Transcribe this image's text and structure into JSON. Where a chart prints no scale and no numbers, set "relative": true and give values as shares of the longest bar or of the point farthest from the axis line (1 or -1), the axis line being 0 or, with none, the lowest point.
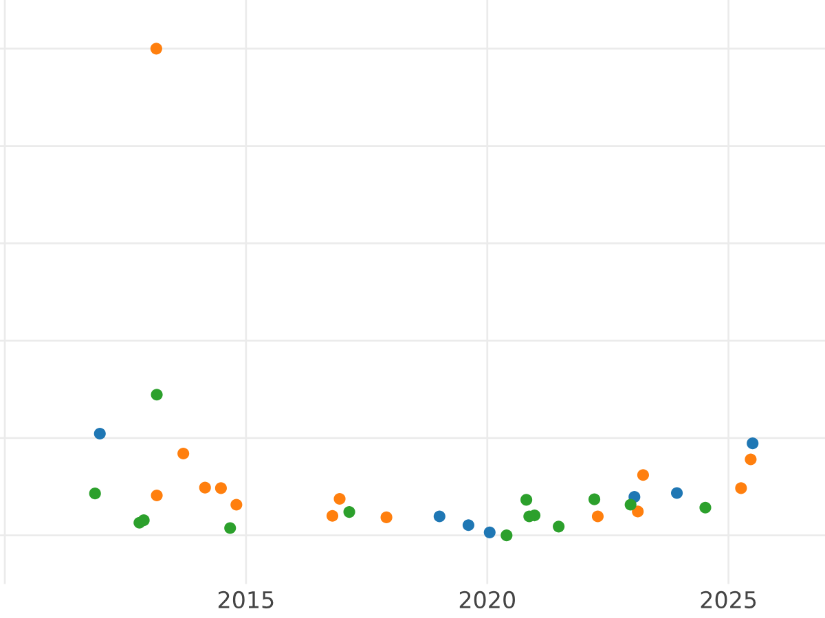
{
  "chart_data": {
    "type": "scatter",
    "relative": true,
    "xlim": [
      2009.9,
      2027
    ],
    "xticks": [
      {
        "value": 2010,
        "label": null
      },
      2015,
      2020,
      2025
    ],
    "grid": true,
    "marker": "circle",
    "series": [
      {
        "color": "#1f77b4",
        "x": [
          2011.97,
          2019.01,
          2019.61,
          2020.05,
          2023.05,
          2023.93,
          2025.5
        ],
        "values": [
          0.209,
          0.039,
          0.021,
          0.006,
          0.079,
          0.087,
          0.189
        ]
      },
      {
        "color": "#ff7f0e",
        "x": [
          2013.14,
          2013.7,
          2013.15,
          2014.15,
          2014.48,
          2014.8,
          2016.94,
          2016.79,
          2017.91,
          2022.29,
          2023.12,
          2023.23,
          2025.26,
          2025.46
        ],
        "values": [
          1,
          0.168,
          0.082,
          0.098,
          0.097,
          0.063,
          0.075,
          0.04,
          0.037,
          0.039,
          0.049,
          0.124,
          0.097,
          0.156
        ]
      },
      {
        "color": "#2ca02c",
        "x": [
          2013.15,
          2011.87,
          2012.79,
          2012.88,
          2014.67,
          2017.14,
          2020.4,
          2020.81,
          2020.91,
          2020.98,
          2020.87,
          2021.48,
          2022.22,
          2022.97,
          2024.52
        ],
        "values": [
          0.289,
          0.086,
          0.026,
          0.031,
          0.015,
          0.048,
          0,
          0.073,
          null,
          0.041,
          0.039,
          0.018,
          0.074,
          0.063,
          0.057
        ]
      }
    ]
  }
}
